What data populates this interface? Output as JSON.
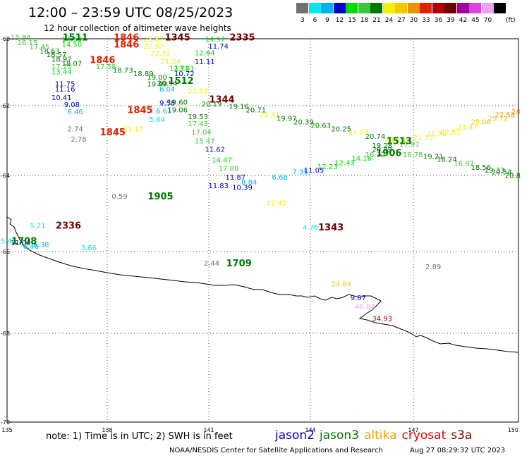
{
  "title": "12:00 – 23:59 UTC 08/25/2023",
  "subtitle": "12 hour collection of altimeter wave heights",
  "legend": {
    "unit": "(ft)",
    "bins": [
      {
        "label": "3",
        "color": "#707070"
      },
      {
        "label": "6",
        "color": "#00e8f0"
      },
      {
        "label": "9",
        "color": "#00b0f0"
      },
      {
        "label": "12",
        "color": "#0000d0"
      },
      {
        "label": "15",
        "color": "#00d800"
      },
      {
        "label": "18",
        "color": "#38c838"
      },
      {
        "label": "21",
        "color": "#007800"
      },
      {
        "label": "24",
        "color": "#f0f000"
      },
      {
        "label": "27",
        "color": "#f0c800"
      },
      {
        "label": "30",
        "color": "#f09000"
      },
      {
        "label": "33",
        "color": "#e02000"
      },
      {
        "label": "36",
        "color": "#b00000"
      },
      {
        "label": "39",
        "color": "#700000"
      },
      {
        "label": "42",
        "color": "#a000a0"
      },
      {
        "label": "45",
        "color": "#e040e0"
      },
      {
        "label": "70",
        "color": "#f0a0f0"
      },
      {
        "label": "",
        "color": "#000000"
      }
    ]
  },
  "axes": {
    "lat_ticks": [
      "-60",
      "-62",
      "-64",
      "-66",
      "-68",
      "-70"
    ],
    "lon_ticks": [
      "135",
      "138",
      "141",
      "144",
      "147",
      "150"
    ]
  },
  "time_labels": [
    {
      "text": "1511",
      "lon": 137.0,
      "lat": -59.95,
      "color": "#007800"
    },
    {
      "text": "1846",
      "lon": 138.5,
      "lat": -59.95,
      "color": "#e02000"
    },
    {
      "text": "1846",
      "lon": 138.5,
      "lat": -60.15,
      "color": "#e02000"
    },
    {
      "text": "1345",
      "lon": 140.0,
      "lat": -59.95,
      "color": "#700000"
    },
    {
      "text": "2335",
      "lon": 141.9,
      "lat": -59.95,
      "color": "#700000"
    },
    {
      "text": "1846",
      "lon": 137.8,
      "lat": -60.6,
      "color": "#e02000"
    },
    {
      "text": "1512",
      "lon": 140.1,
      "lat": -61.2,
      "color": "#007800"
    },
    {
      "text": "1344",
      "lon": 141.3,
      "lat": -61.75,
      "color": "#700000"
    },
    {
      "text": "1845",
      "lon": 138.9,
      "lat": -62.05,
      "color": "#e02000"
    },
    {
      "text": "1845",
      "lon": 138.1,
      "lat": -62.7,
      "color": "#e02000"
    },
    {
      "text": "1513",
      "lon": 146.5,
      "lat": -62.95,
      "color": "#007800"
    },
    {
      "text": "1906",
      "lon": 146.2,
      "lat": -63.3,
      "color": "#007800"
    },
    {
      "text": "1905",
      "lon": 139.5,
      "lat": -64.55,
      "color": "#007800"
    },
    {
      "text": "2336",
      "lon": 136.8,
      "lat": -65.4,
      "color": "#700000"
    },
    {
      "text": "1343",
      "lon": 144.5,
      "lat": -65.45,
      "color": "#700000"
    },
    {
      "text": "1708",
      "lon": 135.5,
      "lat": -65.85,
      "color": "#007800"
    },
    {
      "text": "1709",
      "lon": 141.8,
      "lat": -66.5,
      "color": "#007800"
    }
  ],
  "swh_points": [
    {
      "v": "15.94",
      "lon": 135.4,
      "lat": -59.95
    },
    {
      "v": "16.15",
      "lon": 135.6,
      "lat": -60.1
    },
    {
      "v": "17.45",
      "lon": 135.95,
      "lat": -60.22
    },
    {
      "v": "18.63",
      "lon": 136.25,
      "lat": -60.35
    },
    {
      "v": "18.57",
      "lon": 136.45,
      "lat": -60.45
    },
    {
      "v": "18.97",
      "lon": 136.6,
      "lat": -60.58
    },
    {
      "v": "18.07",
      "lon": 136.9,
      "lat": -60.7
    },
    {
      "v": "17.25",
      "lon": 136.6,
      "lat": -60.8
    },
    {
      "v": "13.44",
      "lon": 136.6,
      "lat": -60.95
    },
    {
      "v": "14.69",
      "lon": 136.9,
      "lat": -60.0
    },
    {
      "v": "14.50",
      "lon": 136.9,
      "lat": -60.15
    },
    {
      "v": "23.87",
      "lon": 139.3,
      "lat": -60.0
    },
    {
      "v": "22.97",
      "lon": 139.3,
      "lat": -60.2
    },
    {
      "v": "22.72",
      "lon": 139.5,
      "lat": -60.42
    },
    {
      "v": "21.24",
      "lon": 139.8,
      "lat": -60.65
    },
    {
      "v": "17.58",
      "lon": 137.9,
      "lat": -60.8
    },
    {
      "v": "18.73",
      "lon": 138.4,
      "lat": -60.9
    },
    {
      "v": "18.89",
      "lon": 139.0,
      "lat": -61.0
    },
    {
      "v": "19.00",
      "lon": 139.4,
      "lat": -61.1
    },
    {
      "v": "14.97",
      "lon": 141.1,
      "lat": -60.0
    },
    {
      "v": "11.74",
      "lon": 141.2,
      "lat": -60.2
    },
    {
      "v": "12.64",
      "lon": 140.8,
      "lat": -60.4
    },
    {
      "v": "11.11",
      "lon": 140.8,
      "lat": -60.65
    },
    {
      "v": "13.01",
      "lon": 140.2,
      "lat": -60.85
    },
    {
      "v": "10.72",
      "lon": 140.2,
      "lat": -61.0
    },
    {
      "v": "12.71",
      "lon": 140.05,
      "lat": -60.85
    },
    {
      "v": "11.75",
      "lon": 136.7,
      "lat": -61.3
    },
    {
      "v": "11.16",
      "lon": 136.7,
      "lat": -61.45
    },
    {
      "v": "10.41",
      "lon": 136.6,
      "lat": -61.7
    },
    {
      "v": "9.08",
      "lon": 136.9,
      "lat": -61.9
    },
    {
      "v": "6.46",
      "lon": 137.0,
      "lat": -62.1
    },
    {
      "v": "19.99",
      "lon": 139.4,
      "lat": -61.3
    },
    {
      "v": "20.94",
      "lon": 139.7,
      "lat": -61.28
    },
    {
      "v": "6.04",
      "lon": 139.7,
      "lat": -61.45
    },
    {
      "v": "21.53",
      "lon": 140.6,
      "lat": -61.5
    },
    {
      "v": "9.58",
      "lon": 139.7,
      "lat": -61.85
    },
    {
      "v": "19.60",
      "lon": 140.0,
      "lat": -61.83
    },
    {
      "v": "20.19",
      "lon": 141.0,
      "lat": -61.88
    },
    {
      "v": "19.16",
      "lon": 141.8,
      "lat": -61.95
    },
    {
      "v": "20.71",
      "lon": 142.3,
      "lat": -62.05
    },
    {
      "v": "6.61",
      "lon": 139.6,
      "lat": -62.08
    },
    {
      "v": "19.06",
      "lon": 140.0,
      "lat": -62.05
    },
    {
      "v": "5.64",
      "lon": 139.4,
      "lat": -62.33
    },
    {
      "v": "19.53",
      "lon": 140.6,
      "lat": -62.25
    },
    {
      "v": "21.31",
      "lon": 142.7,
      "lat": -62.2
    },
    {
      "v": "19.97",
      "lon": 143.2,
      "lat": -62.3
    },
    {
      "v": "20.39",
      "lon": 143.7,
      "lat": -62.4
    },
    {
      "v": "20.63",
      "lon": 144.2,
      "lat": -62.5
    },
    {
      "v": "20.25",
      "lon": 144.8,
      "lat": -62.6
    },
    {
      "v": "21.37",
      "lon": 145.3,
      "lat": -62.7
    },
    {
      "v": "20.74",
      "lon": 145.8,
      "lat": -62.82
    },
    {
      "v": "21.14",
      "lon": 146.4,
      "lat": -62.92
    },
    {
      "v": "2.74",
      "lon": 137.0,
      "lat": -62.6
    },
    {
      "v": "2.78",
      "lon": 137.1,
      "lat": -62.9
    },
    {
      "v": "21.17",
      "lon": 138.7,
      "lat": -62.6
    },
    {
      "v": "17.43",
      "lon": 140.6,
      "lat": -62.45
    },
    {
      "v": "17.04",
      "lon": 140.7,
      "lat": -62.7
    },
    {
      "v": "15.47",
      "lon": 140.8,
      "lat": -62.95
    },
    {
      "v": "11.62",
      "lon": 141.1,
      "lat": -63.2
    },
    {
      "v": "14.47",
      "lon": 141.3,
      "lat": -63.5
    },
    {
      "v": "17.80",
      "lon": 141.5,
      "lat": -63.75
    },
    {
      "v": "11.87",
      "lon": 141.7,
      "lat": -64.0
    },
    {
      "v": "8.84",
      "lon": 142.1,
      "lat": -64.15
    },
    {
      "v": "11.83",
      "lon": 141.2,
      "lat": -64.25
    },
    {
      "v": "10.39",
      "lon": 141.9,
      "lat": -64.3
    },
    {
      "v": "6.68",
      "lon": 143.0,
      "lat": -64.0
    },
    {
      "v": "7.35",
      "lon": 143.6,
      "lat": -63.85
    },
    {
      "v": "11.05",
      "lon": 144.0,
      "lat": -63.8
    },
    {
      "v": "12.23",
      "lon": 144.4,
      "lat": -63.7
    },
    {
      "v": "12.43",
      "lon": 144.9,
      "lat": -63.58
    },
    {
      "v": "14.16",
      "lon": 145.4,
      "lat": -63.45
    },
    {
      "v": "16.32",
      "lon": 145.8,
      "lat": -63.35
    },
    {
      "v": "19.28",
      "lon": 146.0,
      "lat": -63.08
    },
    {
      "v": "20.49",
      "lon": 146.0,
      "lat": -63.2
    },
    {
      "v": "17.97",
      "lon": 146.8,
      "lat": -63.05
    },
    {
      "v": "19.21",
      "lon": 147.5,
      "lat": -63.4
    },
    {
      "v": "18.24",
      "lon": 147.9,
      "lat": -63.48
    },
    {
      "v": "16.97",
      "lon": 148.4,
      "lat": -63.6
    },
    {
      "v": "18.56",
      "lon": 148.9,
      "lat": -63.72
    },
    {
      "v": "19.33",
      "lon": 149.3,
      "lat": -63.8
    },
    {
      "v": "20.54",
      "lon": 149.8,
      "lat": -63.85
    },
    {
      "v": "20.8",
      "lon": 150.2,
      "lat": -63.95
    },
    {
      "v": "16.78",
      "lon": 146.9,
      "lat": -63.35
    },
    {
      "v": "21.33",
      "lon": 147.2,
      "lat": -62.85
    },
    {
      "v": "21.70",
      "lon": 147.6,
      "lat": -62.75
    },
    {
      "v": "22.51",
      "lon": 148.0,
      "lat": -62.7
    },
    {
      "v": "23.47",
      "lon": 148.5,
      "lat": -62.55
    },
    {
      "v": "25.06",
      "lon": 148.9,
      "lat": -62.4
    },
    {
      "v": "25.72",
      "lon": 149.4,
      "lat": -62.3
    },
    {
      "v": "27.58",
      "lon": 149.9,
      "lat": -62.2
    },
    {
      "v": "28",
      "lon": 150.3,
      "lat": -62.1
    },
    {
      "v": "0.59",
      "lon": 138.3,
      "lat": -64.55
    },
    {
      "v": "22.41",
      "lon": 142.9,
      "lat": -64.75
    },
    {
      "v": "5.21",
      "lon": 135.9,
      "lat": -65.4
    },
    {
      "v": "5.40",
      "lon": 135.0,
      "lat": -65.85
    },
    {
      "v": "11.00",
      "lon": 135.4,
      "lat": -65.9
    },
    {
      "v": "6.46",
      "lon": 135.7,
      "lat": -66.0
    },
    {
      "v": "6.38",
      "lon": 136.0,
      "lat": -65.95
    },
    {
      "v": "3.66",
      "lon": 137.4,
      "lat": -66.05
    },
    {
      "v": "4.76",
      "lon": 143.9,
      "lat": -65.45
    },
    {
      "v": "2.44",
      "lon": 141.0,
      "lat": -66.5
    },
    {
      "v": "2.89",
      "lon": 147.5,
      "lat": -66.6
    },
    {
      "v": "24.84",
      "lon": 144.8,
      "lat": -67.1
    },
    {
      "v": "9.87",
      "lon": 145.3,
      "lat": -67.5
    },
    {
      "v": "46.84",
      "lon": 145.5,
      "lat": -67.75
    },
    {
      "v": "34.93",
      "lon": 146.0,
      "lat": -68.1
    }
  ],
  "footer": {
    "note": "note:  1) Time is in UTC;  2) SWH is in feet",
    "satellites": [
      {
        "name": "jason2",
        "color": "#0000c8"
      },
      {
        "name": "jason3",
        "color": "#007800"
      },
      {
        "name": "altika",
        "color": "#f0a000"
      },
      {
        "name": "cryosat",
        "color": "#e00000"
      },
      {
        "name": "s3a",
        "color": "#700000"
      }
    ],
    "credit": "NOAA/NESDIS Center for Satellite Applications and Research",
    "timestamp": "Aug 27 08:29:32 UTC 2023"
  }
}
